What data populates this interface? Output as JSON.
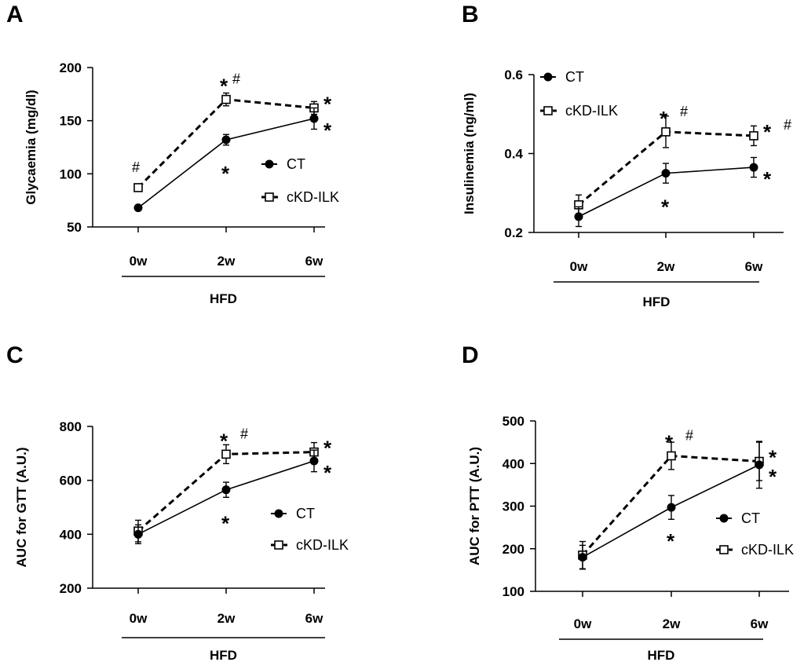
{
  "chart_data": [
    {
      "type": "line",
      "panel": "A",
      "ylabel": "Glycaemia (mg/dl)",
      "xlabel": "HFD",
      "categories": [
        "0w",
        "2w",
        "6w"
      ],
      "ylim": [
        50,
        200
      ],
      "yticks": [
        50,
        100,
        150,
        200
      ],
      "series": [
        {
          "name": "CT",
          "marker": "filled-circle",
          "line": "solid",
          "values": [
            68,
            132,
            152
          ],
          "errors": [
            2,
            5,
            10
          ]
        },
        {
          "name": "cKD-ILK",
          "marker": "open-square",
          "line": "dashed",
          "values": [
            87,
            170,
            162
          ],
          "errors": [
            2,
            6,
            6
          ]
        }
      ],
      "annotations": [
        {
          "series": "cKD-ILK",
          "index": 0,
          "text": "#"
        },
        {
          "series": "cKD-ILK",
          "index": 1,
          "text": "*#"
        },
        {
          "series": "cKD-ILK",
          "index": 2,
          "text": "*"
        },
        {
          "series": "CT",
          "index": 1,
          "text": "*"
        },
        {
          "series": "CT",
          "index": 2,
          "text": "*"
        }
      ]
    },
    {
      "type": "line",
      "panel": "B",
      "ylabel": "Insulinemia (ng/ml)",
      "xlabel": "HFD",
      "categories": [
        "0w",
        "2w",
        "6w"
      ],
      "ylim": [
        0.2,
        0.6
      ],
      "yticks": [
        0.2,
        0.4,
        0.6
      ],
      "series": [
        {
          "name": "CT",
          "marker": "filled-circle",
          "line": "solid",
          "values": [
            0.24,
            0.35,
            0.365
          ],
          "errors": [
            0.025,
            0.025,
            0.025
          ]
        },
        {
          "name": "cKD-ILK",
          "marker": "open-square",
          "line": "dashed",
          "values": [
            0.27,
            0.455,
            0.445
          ],
          "errors": [
            0.025,
            0.04,
            0.025
          ]
        }
      ],
      "annotations": [
        {
          "series": "cKD-ILK",
          "index": 1,
          "text": "* #"
        },
        {
          "series": "cKD-ILK",
          "index": 2,
          "text": "* #"
        },
        {
          "series": "CT",
          "index": 1,
          "text": "*"
        },
        {
          "series": "CT",
          "index": 2,
          "text": "*"
        }
      ]
    },
    {
      "type": "line",
      "panel": "C",
      "ylabel": "AUC for GTT (A.U.)",
      "xlabel": "HFD",
      "categories": [
        "0w",
        "2w",
        "6w"
      ],
      "ylim": [
        200,
        800
      ],
      "yticks": [
        200,
        400,
        600,
        800
      ],
      "series": [
        {
          "name": "CT",
          "marker": "filled-circle",
          "line": "solid",
          "values": [
            400,
            565,
            672
          ],
          "errors": [
            35,
            28,
            40
          ]
        },
        {
          "name": "cKD-ILK",
          "marker": "open-square",
          "line": "dashed",
          "values": [
            412,
            697,
            705
          ],
          "errors": [
            40,
            35,
            35
          ]
        }
      ],
      "annotations": [
        {
          "series": "cKD-ILK",
          "index": 1,
          "text": "* #"
        },
        {
          "series": "cKD-ILK",
          "index": 2,
          "text": "*"
        },
        {
          "series": "CT",
          "index": 1,
          "text": "*"
        },
        {
          "series": "CT",
          "index": 2,
          "text": "*"
        }
      ]
    },
    {
      "type": "line",
      "panel": "D",
      "ylabel": "AUC for PTT (A.U.)",
      "xlabel": "HFD",
      "categories": [
        "0w",
        "2w",
        "6w"
      ],
      "ylim": [
        100,
        500
      ],
      "yticks": [
        100,
        200,
        300,
        400,
        500
      ],
      "series": [
        {
          "name": "CT",
          "marker": "filled-circle",
          "line": "solid",
          "values": [
            180,
            297,
            397
          ],
          "errors": [
            28,
            28,
            55
          ]
        },
        {
          "name": "cKD-ILK",
          "marker": "open-square",
          "line": "dashed",
          "values": [
            185,
            418,
            405
          ],
          "errors": [
            32,
            32,
            45
          ]
        }
      ],
      "annotations": [
        {
          "series": "cKD-ILK",
          "index": 1,
          "text": "* #"
        },
        {
          "series": "cKD-ILK",
          "index": 2,
          "text": "*"
        },
        {
          "series": "CT",
          "index": 1,
          "text": "*"
        },
        {
          "series": "CT",
          "index": 2,
          "text": "*"
        }
      ]
    }
  ],
  "legend_labels": [
    "CT",
    "cKD-ILK"
  ]
}
